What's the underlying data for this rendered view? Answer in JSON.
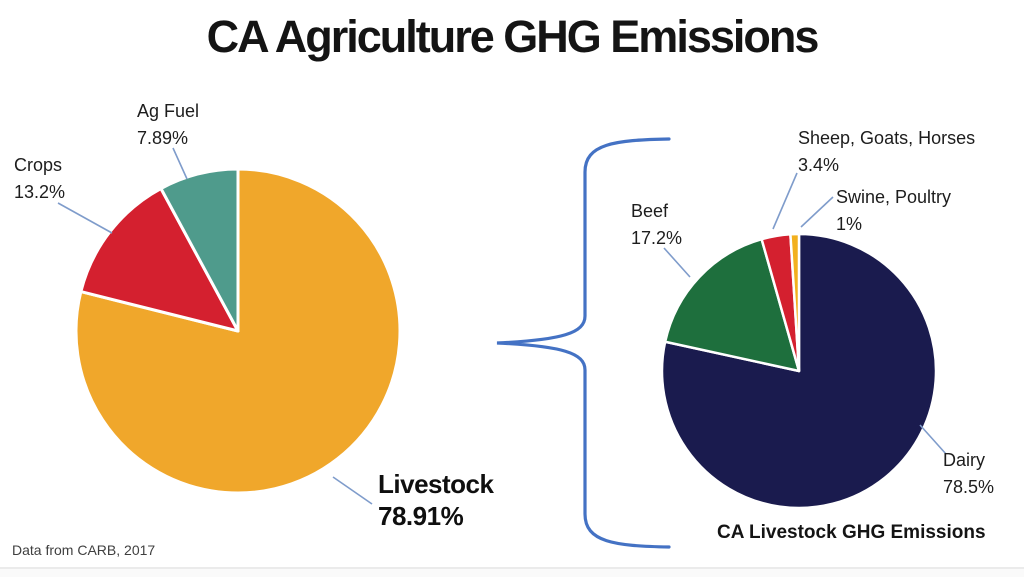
{
  "title": "CA Agriculture GHG Emissions",
  "source_note": "Data from CARB, 2017",
  "colors": {
    "brace": "#4472C4",
    "leader_line": "#7F9CCB"
  },
  "chart_data": [
    {
      "type": "pie",
      "title": "CA Agriculture GHG Emissions",
      "start_angle": "12-oclock",
      "direction": "clockwise",
      "legend_position": "outside-callout-labels",
      "slices": [
        {
          "label": "Livestock",
          "value": 78.91,
          "display": "78.91%",
          "color": "#F0A72B"
        },
        {
          "label": "Crops",
          "value": 13.2,
          "display": "13.2%",
          "color": "#D4202F"
        },
        {
          "label": "Ag Fuel",
          "value": 7.89,
          "display": "7.89%",
          "color": "#4F9B8C"
        }
      ]
    },
    {
      "type": "pie",
      "title": "CA Livestock GHG Emissions",
      "start_angle": "12-oclock",
      "direction": "clockwise",
      "legend_position": "outside-callout-labels",
      "slices": [
        {
          "label": "Dairy",
          "value": 78.5,
          "display": "78.5%",
          "color": "#1A1B4E"
        },
        {
          "label": "Beef",
          "value": 17.2,
          "display": "17.2%",
          "color": "#1E6F3D"
        },
        {
          "label": "Sheep, Goats, Horses",
          "value": 3.4,
          "display": "3.4%",
          "color": "#D4202F"
        },
        {
          "label": "Swine, Poultry",
          "value": 1,
          "display": "1%",
          "color": "#F2B01E"
        }
      ]
    }
  ]
}
